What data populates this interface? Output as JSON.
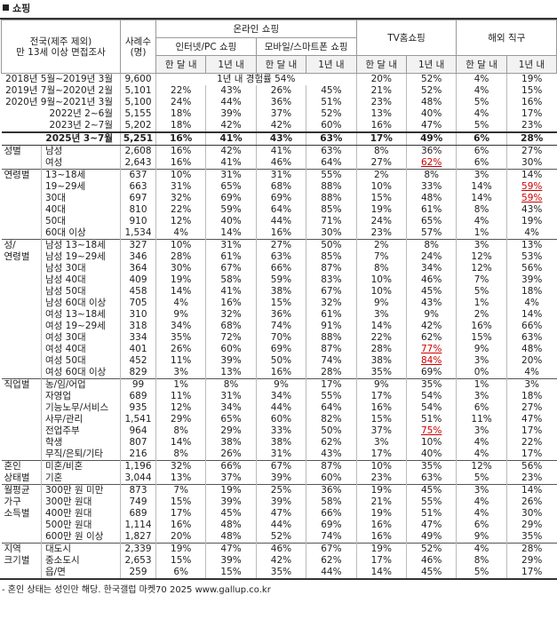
{
  "title": "쇼핑",
  "header": {
    "survey": "전국(제주 제외)\n만 13세 이상 면접조사",
    "n": "사례수\n(명)",
    "online": "온라인 쇼핑",
    "pc": "인터넷/PC 쇼핑",
    "mobile": "모바일/스마트폰 쇼핑",
    "tv": "TV홈쇼핑",
    "overseas": "해외 직구",
    "month": "한 달 내",
    "year": "1년 내"
  },
  "trend": [
    {
      "label": "2018년 5월~2019년 3월",
      "n": "9,600",
      "note": "1년 내 경험률 54%",
      "values": [
        null,
        null,
        null,
        null,
        "20%",
        "52%",
        "4%",
        "19%"
      ]
    },
    {
      "label": "2019년 7월~2020년 2월",
      "n": "5,101",
      "values": [
        "22%",
        "43%",
        "26%",
        "45%",
        "21%",
        "52%",
        "4%",
        "15%"
      ]
    },
    {
      "label": "2020년 9월~2021년 3월",
      "n": "5,100",
      "values": [
        "24%",
        "44%",
        "36%",
        "51%",
        "23%",
        "48%",
        "5%",
        "16%"
      ]
    },
    {
      "label": "2022년 2~6월",
      "n": "5,155",
      "values": [
        "18%",
        "39%",
        "37%",
        "52%",
        "13%",
        "40%",
        "4%",
        "17%"
      ]
    },
    {
      "label": "2023년 2~7월",
      "n": "5,202",
      "values": [
        "18%",
        "42%",
        "42%",
        "60%",
        "16%",
        "47%",
        "5%",
        "23%"
      ]
    },
    {
      "label": "2025년 3~7월",
      "n": "5,251",
      "values": [
        "16%",
        "41%",
        "43%",
        "63%",
        "17%",
        "49%",
        "6%",
        "28%"
      ]
    }
  ],
  "groups": [
    {
      "label": "성별",
      "rows": [
        {
          "label": "남성",
          "n": "2,608",
          "values": [
            "16%",
            "42%",
            "41%",
            "63%",
            "8%",
            "36%",
            "6%",
            "27%"
          ]
        },
        {
          "label": "여성",
          "n": "2,643",
          "values": [
            "16%",
            "41%",
            "46%",
            "64%",
            "27%",
            "62%",
            "6%",
            "30%"
          ],
          "marked": [
            5
          ]
        }
      ]
    },
    {
      "label": "연령별",
      "rows": [
        {
          "label": "13~18세",
          "n": "637",
          "values": [
            "10%",
            "31%",
            "31%",
            "55%",
            "2%",
            "8%",
            "3%",
            "14%"
          ]
        },
        {
          "label": "19~29세",
          "n": "663",
          "values": [
            "31%",
            "65%",
            "68%",
            "88%",
            "10%",
            "33%",
            "14%",
            "59%"
          ],
          "marked": [
            7
          ]
        },
        {
          "label": "30대",
          "n": "697",
          "values": [
            "32%",
            "69%",
            "69%",
            "88%",
            "15%",
            "48%",
            "14%",
            "59%"
          ],
          "marked": [
            7
          ]
        },
        {
          "label": "40대",
          "n": "810",
          "values": [
            "22%",
            "59%",
            "64%",
            "85%",
            "19%",
            "61%",
            "8%",
            "43%"
          ]
        },
        {
          "label": "50대",
          "n": "910",
          "values": [
            "12%",
            "40%",
            "44%",
            "71%",
            "24%",
            "65%",
            "4%",
            "19%"
          ]
        },
        {
          "label": "60대 이상",
          "n": "1,534",
          "values": [
            "4%",
            "14%",
            "16%",
            "30%",
            "23%",
            "57%",
            "1%",
            "4%"
          ]
        }
      ]
    },
    {
      "label": "성/\n연령별",
      "rows": [
        {
          "label": "남성 13~18세",
          "n": "327",
          "values": [
            "10%",
            "31%",
            "27%",
            "50%",
            "2%",
            "8%",
            "3%",
            "13%"
          ]
        },
        {
          "label": "남성 19~29세",
          "n": "346",
          "values": [
            "28%",
            "61%",
            "63%",
            "85%",
            "7%",
            "24%",
            "12%",
            "53%"
          ]
        },
        {
          "label": "남성 30대",
          "n": "364",
          "values": [
            "30%",
            "67%",
            "66%",
            "87%",
            "8%",
            "34%",
            "12%",
            "56%"
          ]
        },
        {
          "label": "남성 40대",
          "n": "409",
          "values": [
            "19%",
            "58%",
            "59%",
            "83%",
            "10%",
            "46%",
            "7%",
            "39%"
          ]
        },
        {
          "label": "남성 50대",
          "n": "458",
          "values": [
            "14%",
            "41%",
            "38%",
            "67%",
            "10%",
            "45%",
            "5%",
            "18%"
          ]
        },
        {
          "label": "남성 60대 이상",
          "n": "705",
          "values": [
            "4%",
            "16%",
            "15%",
            "32%",
            "9%",
            "43%",
            "1%",
            "4%"
          ]
        },
        {
          "label": "여성 13~18세",
          "n": "310",
          "values": [
            "9%",
            "32%",
            "36%",
            "61%",
            "3%",
            "9%",
            "2%",
            "14%"
          ]
        },
        {
          "label": "여성 19~29세",
          "n": "318",
          "values": [
            "34%",
            "68%",
            "74%",
            "91%",
            "14%",
            "42%",
            "16%",
            "66%"
          ]
        },
        {
          "label": "여성 30대",
          "n": "334",
          "values": [
            "35%",
            "72%",
            "70%",
            "88%",
            "22%",
            "62%",
            "15%",
            "63%"
          ]
        },
        {
          "label": "여성 40대",
          "n": "401",
          "values": [
            "26%",
            "60%",
            "69%",
            "87%",
            "28%",
            "77%",
            "9%",
            "48%"
          ],
          "marked": [
            5
          ]
        },
        {
          "label": "여성 50대",
          "n": "452",
          "values": [
            "11%",
            "39%",
            "50%",
            "74%",
            "38%",
            "84%",
            "3%",
            "20%"
          ],
          "marked": [
            5
          ]
        },
        {
          "label": "여성 60대 이상",
          "n": "829",
          "values": [
            "3%",
            "13%",
            "16%",
            "28%",
            "35%",
            "69%",
            "0%",
            "4%"
          ]
        }
      ]
    },
    {
      "label": "직업별",
      "rows": [
        {
          "label": "농/임/어업",
          "n": "99",
          "values": [
            "1%",
            "8%",
            "9%",
            "17%",
            "9%",
            "35%",
            "1%",
            "3%"
          ]
        },
        {
          "label": "자영업",
          "n": "689",
          "values": [
            "11%",
            "31%",
            "34%",
            "55%",
            "17%",
            "54%",
            "3%",
            "18%"
          ]
        },
        {
          "label": "기능노무/서비스",
          "n": "935",
          "values": [
            "12%",
            "34%",
            "44%",
            "64%",
            "16%",
            "54%",
            "6%",
            "27%"
          ]
        },
        {
          "label": "사무/관리",
          "n": "1,541",
          "values": [
            "29%",
            "65%",
            "60%",
            "82%",
            "15%",
            "51%",
            "11%",
            "47%"
          ]
        },
        {
          "label": "전업주부",
          "n": "964",
          "values": [
            "8%",
            "29%",
            "33%",
            "50%",
            "37%",
            "75%",
            "3%",
            "17%"
          ],
          "marked": [
            5
          ]
        },
        {
          "label": "학생",
          "n": "807",
          "values": [
            "14%",
            "38%",
            "38%",
            "62%",
            "3%",
            "10%",
            "4%",
            "22%"
          ]
        },
        {
          "label": "무직/은퇴/기타",
          "n": "216",
          "values": [
            "8%",
            "26%",
            "31%",
            "43%",
            "17%",
            "40%",
            "4%",
            "17%"
          ]
        }
      ]
    },
    {
      "label": "혼인\n상태별",
      "rows": [
        {
          "label": "미혼/비혼",
          "n": "1,196",
          "values": [
            "32%",
            "66%",
            "67%",
            "87%",
            "10%",
            "35%",
            "12%",
            "56%"
          ]
        },
        {
          "label": "기혼",
          "n": "3,044",
          "values": [
            "13%",
            "37%",
            "39%",
            "60%",
            "23%",
            "63%",
            "5%",
            "23%"
          ]
        }
      ]
    },
    {
      "label": "월평균\n가구\n소득별",
      "rows": [
        {
          "label": "300만 원 미만",
          "n": "873",
          "values": [
            "7%",
            "19%",
            "25%",
            "36%",
            "19%",
            "45%",
            "3%",
            "14%"
          ]
        },
        {
          "label": "300만 원대",
          "n": "749",
          "values": [
            "15%",
            "39%",
            "39%",
            "58%",
            "21%",
            "55%",
            "4%",
            "26%"
          ]
        },
        {
          "label": "400만 원대",
          "n": "689",
          "values": [
            "17%",
            "45%",
            "47%",
            "66%",
            "19%",
            "51%",
            "4%",
            "30%"
          ]
        },
        {
          "label": "500만 원대",
          "n": "1,114",
          "values": [
            "16%",
            "48%",
            "44%",
            "69%",
            "16%",
            "47%",
            "6%",
            "29%"
          ]
        },
        {
          "label": "600만 원 이상",
          "n": "1,827",
          "values": [
            "20%",
            "48%",
            "52%",
            "74%",
            "16%",
            "49%",
            "9%",
            "35%"
          ]
        }
      ]
    },
    {
      "label": "지역\n크기별",
      "rows": [
        {
          "label": "대도시",
          "n": "2,339",
          "values": [
            "19%",
            "47%",
            "46%",
            "67%",
            "19%",
            "52%",
            "4%",
            "28%"
          ]
        },
        {
          "label": "중소도시",
          "n": "2,653",
          "values": [
            "15%",
            "39%",
            "42%",
            "62%",
            "17%",
            "46%",
            "8%",
            "29%"
          ]
        },
        {
          "label": "읍/면",
          "n": "259",
          "values": [
            "6%",
            "15%",
            "35%",
            "44%",
            "14%",
            "45%",
            "5%",
            "17%"
          ]
        }
      ]
    }
  ],
  "footer": "- 혼인 상태는 성인만 해당. 한국갤럽 마켓70 2025 www.gallup.co.kr"
}
